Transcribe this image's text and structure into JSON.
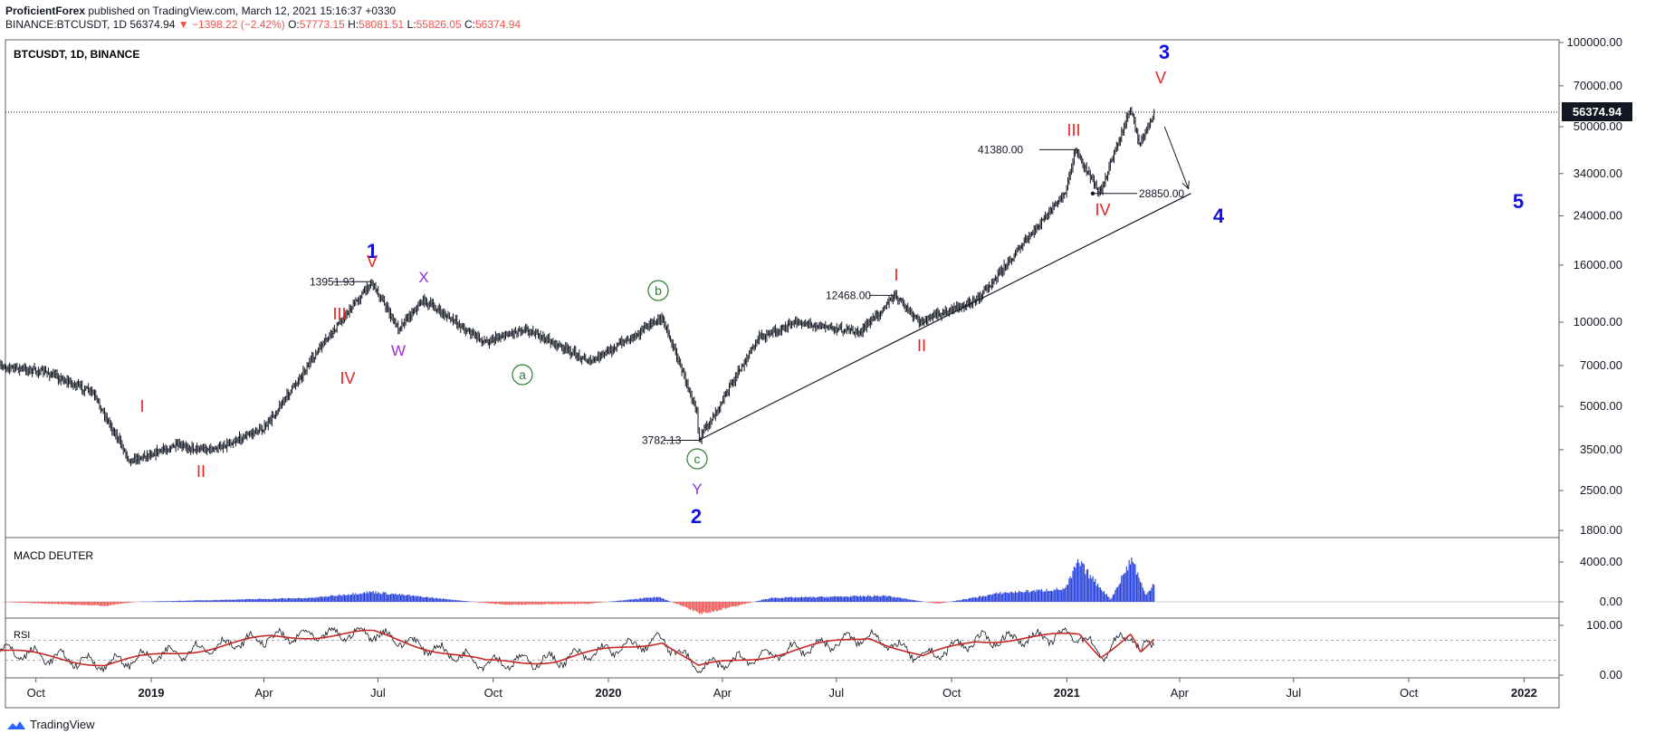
{
  "header": {
    "publisher": "ProficientForex",
    "published_text": "published on TradingView.com, March 12, 2021 15:16:37 +0330",
    "symbol_line": "BINANCE:BTCUSDT, 1D",
    "last": "56374.94",
    "change": "▼ −1398.22 (−2.42%)",
    "open_label": "O:",
    "open": "57773.15",
    "high_label": "H:",
    "high": "58081.51",
    "low_label": "L:",
    "low": "55826.05",
    "close_label": "C:",
    "close": "56374.94"
  },
  "pane_titles": {
    "main": "BTCUSDT, 1D, BINANCE",
    "macd": "MACD DEUTER",
    "rsi": "RSI"
  },
  "footer": {
    "brand": "TradingView"
  },
  "colors": {
    "wave_red": "#e8231f",
    "wave_blue": "#1010e0",
    "wave_purple": "#9b30d9",
    "wave_green": "#2e7d32",
    "hist_red": "#ef5350",
    "hist_blue": "#1e3ad8",
    "rsi_ma": "#c62828"
  },
  "chart_data": {
    "type": "line",
    "symbol": "BTCUSDT",
    "interval": "1D",
    "y_scale": "log",
    "last_price_label": "56374.94",
    "price_axis_ticks": [
      "100000.00",
      "70000.00",
      "50000.00",
      "34000.00",
      "24000.00",
      "16000.00",
      "10000.00",
      "7000.00",
      "5000.00",
      "3500.00",
      "2500.00",
      "1800.00"
    ],
    "macd_axis_ticks": [
      "4000.00",
      "0.00"
    ],
    "rsi_axis_ticks": [
      "100.00",
      "0.00"
    ],
    "x_ticks": [
      "Oct",
      "2019",
      "Apr",
      "Jul",
      "Oct",
      "2020",
      "Apr",
      "Jul",
      "Oct",
      "2021",
      "Apr",
      "Jul",
      "Oct",
      "2022"
    ],
    "price_path_dates": [
      "2018-09-01",
      "2018-10-10",
      "2018-11-15",
      "2018-12-15",
      "2019-01-20",
      "2019-02-20",
      "2019-04-02",
      "2019-05-15",
      "2019-06-26",
      "2019-07-17",
      "2019-08-06",
      "2019-09-24",
      "2019-10-26",
      "2019-12-18",
      "2020-02-13",
      "2020-03-12",
      "2020-03-13",
      "2020-04-30",
      "2020-06-01",
      "2020-07-20",
      "2020-08-17",
      "2020-09-05",
      "2020-10-21",
      "2020-11-25",
      "2020-12-31",
      "2021-01-08",
      "2021-01-27",
      "2021-02-21",
      "2021-02-28",
      "2021-03-12"
    ],
    "price_path_values": [
      7000,
      6600,
      5600,
      3200,
      3600,
      3500,
      4200,
      8000,
      13951.93,
      9500,
      12000,
      8500,
      9500,
      7200,
      10400,
      4800,
      3782.13,
      8800,
      10000,
      9200,
      12468,
      10000,
      12000,
      18500,
      29000,
      41380,
      28850,
      58000,
      43000,
      56374.94
    ],
    "price_labels": [
      {
        "text": "13951.93",
        "value": 13951.93
      },
      {
        "text": "3782.13",
        "value": 3782.13
      },
      {
        "text": "12468.00",
        "value": 12468
      },
      {
        "text": "41380.00",
        "value": 41380
      },
      {
        "text": "28850.00",
        "value": 28850
      }
    ],
    "wave_labels": [
      {
        "text": "1",
        "group": "blue"
      },
      {
        "text": "2",
        "group": "blue"
      },
      {
        "text": "3",
        "group": "blue"
      },
      {
        "text": "4",
        "group": "blue"
      },
      {
        "text": "5",
        "group": "blue"
      },
      {
        "text": "I",
        "group": "red"
      },
      {
        "text": "II",
        "group": "red"
      },
      {
        "text": "III",
        "group": "red"
      },
      {
        "text": "IV",
        "group": "red"
      },
      {
        "text": "V",
        "group": "red"
      },
      {
        "text": "I",
        "group": "red"
      },
      {
        "text": "II",
        "group": "red"
      },
      {
        "text": "III",
        "group": "red"
      },
      {
        "text": "IV",
        "group": "red"
      },
      {
        "text": "V",
        "group": "red"
      },
      {
        "text": "W",
        "group": "purple"
      },
      {
        "text": "X",
        "group": "purple"
      },
      {
        "text": "Y",
        "group": "purple"
      },
      {
        "text": "a",
        "group": "green"
      },
      {
        "text": "b",
        "group": "green"
      },
      {
        "text": "c",
        "group": "green"
      }
    ],
    "trendline": {
      "from_date": "2020-03-13",
      "from_value": 3782.13,
      "to_date": "2021-04-10",
      "to_value": 28850
    },
    "forecast_arrow": {
      "from_date": "2021-03-20",
      "from_value": 50000,
      "to_date": "2021-04-08",
      "to_value": 30000
    },
    "macd": {
      "dates": [
        "2018-09-01",
        "2018-11-25",
        "2018-12-20",
        "2019-05-10",
        "2019-06-26",
        "2019-10-10",
        "2019-12-15",
        "2020-02-10",
        "2020-03-16",
        "2020-05-10",
        "2020-08-10",
        "2020-09-20",
        "2020-11-10",
        "2020-12-31",
        "2021-01-10",
        "2021-02-05",
        "2021-02-22",
        "2021-03-05",
        "2021-03-12"
      ],
      "values": [
        0,
        -400,
        0,
        400,
        1000,
        -300,
        -200,
        500,
        -1200,
        400,
        600,
        -200,
        900,
        1300,
        4000,
        250,
        4400,
        600,
        2000
      ]
    },
    "rsi": {
      "dates": [
        "2018-09-01",
        "2018-11-25",
        "2019-04-05",
        "2019-06-26",
        "2019-09-25",
        "2019-11-20",
        "2020-02-13",
        "2020-03-13",
        "2020-07-28",
        "2020-09-08",
        "2020-10-20",
        "2020-12-10",
        "2021-01-11",
        "2021-01-28",
        "2021-02-21",
        "2021-03-01",
        "2021-03-12"
      ],
      "values": [
        50,
        22,
        75,
        85,
        25,
        30,
        70,
        15,
        78,
        35,
        70,
        75,
        82,
        40,
        85,
        45,
        68
      ],
      "levels": [
        70,
        30
      ]
    }
  }
}
